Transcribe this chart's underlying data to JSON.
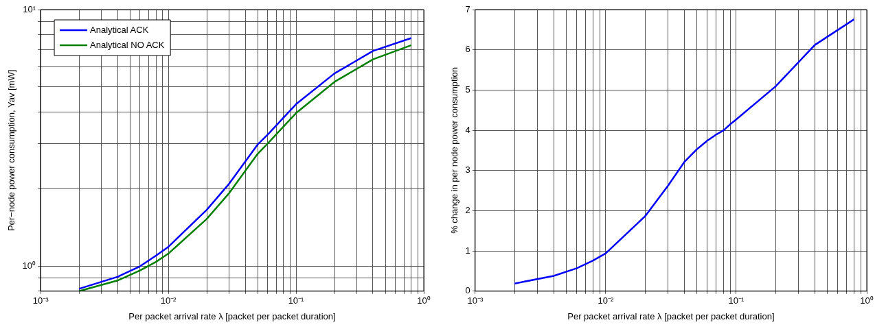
{
  "chart_data": [
    {
      "type": "line",
      "xlabel": "Per packet arrival rate λ [packet per packet duration]",
      "ylabel": "Per−node power consumption, Yav [mW]",
      "log": "xy",
      "grid": true,
      "legend": "top left",
      "x": [
        0.002,
        0.004,
        0.006,
        0.008,
        0.01,
        0.02,
        0.03,
        0.05,
        0.06,
        0.1,
        0.2,
        0.4,
        0.8
      ],
      "series": [
        {
          "name": "Analytical ACK",
          "color": "#0000ff",
          "values": [
            0.817,
            0.91,
            1.0,
            1.1,
            1.19,
            1.66,
            2.1,
            2.98,
            3.26,
            4.28,
            5.64,
            6.9,
            7.75
          ]
        },
        {
          "name": "Analytical NO ACK",
          "color": "#008000",
          "values": [
            0.8,
            0.88,
            0.963,
            1.04,
            1.12,
            1.53,
            1.93,
            2.74,
            3.01,
            3.95,
            5.23,
            6.4,
            7.27
          ]
        }
      ],
      "xlim": [
        0.001,
        1
      ],
      "ylim": [
        0.8,
        10
      ],
      "xticks": [
        {
          "value": 0.001,
          "label": "10⁻³"
        },
        {
          "value": 0.002,
          "label": null
        },
        {
          "value": 0.003,
          "label": null
        },
        {
          "value": 0.004,
          "label": null
        },
        {
          "value": 0.005,
          "label": null
        },
        {
          "value": 0.006,
          "label": null
        },
        {
          "value": 0.007,
          "label": null
        },
        {
          "value": 0.008,
          "label": null
        },
        {
          "value": 0.009,
          "label": null
        },
        {
          "value": 0.01,
          "label": "10⁻²"
        },
        {
          "value": 0.02,
          "label": null
        },
        {
          "value": 0.03,
          "label": null
        },
        {
          "value": 0.04,
          "label": null
        },
        {
          "value": 0.05,
          "label": null
        },
        {
          "value": 0.06,
          "label": null
        },
        {
          "value": 0.07,
          "label": null
        },
        {
          "value": 0.08,
          "label": null
        },
        {
          "value": 0.09,
          "label": null
        },
        {
          "value": 0.1,
          "label": "10⁻¹"
        },
        {
          "value": 0.2,
          "label": null
        },
        {
          "value": 0.3,
          "label": null
        },
        {
          "value": 0.4,
          "label": null
        },
        {
          "value": 0.5,
          "label": null
        },
        {
          "value": 0.6,
          "label": null
        },
        {
          "value": 0.7,
          "label": null
        },
        {
          "value": 0.8,
          "label": null
        },
        {
          "value": 0.9,
          "label": null
        },
        {
          "value": 1,
          "label": "10⁰"
        }
      ],
      "yticks": [
        {
          "value": 0.8,
          "label": null
        },
        {
          "value": 0.9,
          "label": null
        },
        {
          "value": 1,
          "label": "10⁰"
        },
        {
          "value": 2,
          "label": null
        },
        {
          "value": 3,
          "label": null
        },
        {
          "value": 4,
          "label": null
        },
        {
          "value": 5,
          "label": null
        },
        {
          "value": 6,
          "label": null
        },
        {
          "value": 7,
          "label": null
        },
        {
          "value": 8,
          "label": null
        },
        {
          "value": 9,
          "label": null
        },
        {
          "value": 10,
          "label": "10¹"
        }
      ]
    },
    {
      "type": "line",
      "xlabel": "Per packet arrival rate λ [packet per packet duration]",
      "ylabel": "% change in per node power consumption",
      "log": "x",
      "grid": true,
      "x": [
        0.002,
        0.004,
        0.006,
        0.008,
        0.01,
        0.02,
        0.03,
        0.04,
        0.05,
        0.06,
        0.07,
        0.08,
        0.09,
        0.1,
        0.2,
        0.4,
        0.8
      ],
      "series": [
        {
          "color": "#0000ff",
          "values": [
            0.19,
            0.38,
            0.57,
            0.76,
            0.94,
            1.86,
            2.62,
            3.21,
            3.53,
            3.74,
            3.89,
            4.0,
            4.15,
            4.27,
            5.09,
            6.12,
            6.76
          ]
        }
      ],
      "xlim": [
        0.001,
        1
      ],
      "ylim": [
        0,
        7
      ],
      "xticks": [
        {
          "value": 0.001,
          "label": "10⁻³"
        },
        {
          "value": 0.002,
          "label": null
        },
        {
          "value": 0.003,
          "label": null
        },
        {
          "value": 0.004,
          "label": null
        },
        {
          "value": 0.005,
          "label": null
        },
        {
          "value": 0.006,
          "label": null
        },
        {
          "value": 0.007,
          "label": null
        },
        {
          "value": 0.008,
          "label": null
        },
        {
          "value": 0.009,
          "label": null
        },
        {
          "value": 0.01,
          "label": "10⁻²"
        },
        {
          "value": 0.02,
          "label": null
        },
        {
          "value": 0.03,
          "label": null
        },
        {
          "value": 0.04,
          "label": null
        },
        {
          "value": 0.05,
          "label": null
        },
        {
          "value": 0.06,
          "label": null
        },
        {
          "value": 0.07,
          "label": null
        },
        {
          "value": 0.08,
          "label": null
        },
        {
          "value": 0.09,
          "label": null
        },
        {
          "value": 0.1,
          "label": "10⁻¹"
        },
        {
          "value": 0.2,
          "label": null
        },
        {
          "value": 0.3,
          "label": null
        },
        {
          "value": 0.4,
          "label": null
        },
        {
          "value": 0.5,
          "label": null
        },
        {
          "value": 0.6,
          "label": null
        },
        {
          "value": 0.7,
          "label": null
        },
        {
          "value": 0.8,
          "label": null
        },
        {
          "value": 0.9,
          "label": null
        },
        {
          "value": 1,
          "label": "10⁰"
        }
      ],
      "yticks": [
        0,
        1,
        2,
        3,
        4,
        5,
        6,
        7
      ]
    }
  ]
}
